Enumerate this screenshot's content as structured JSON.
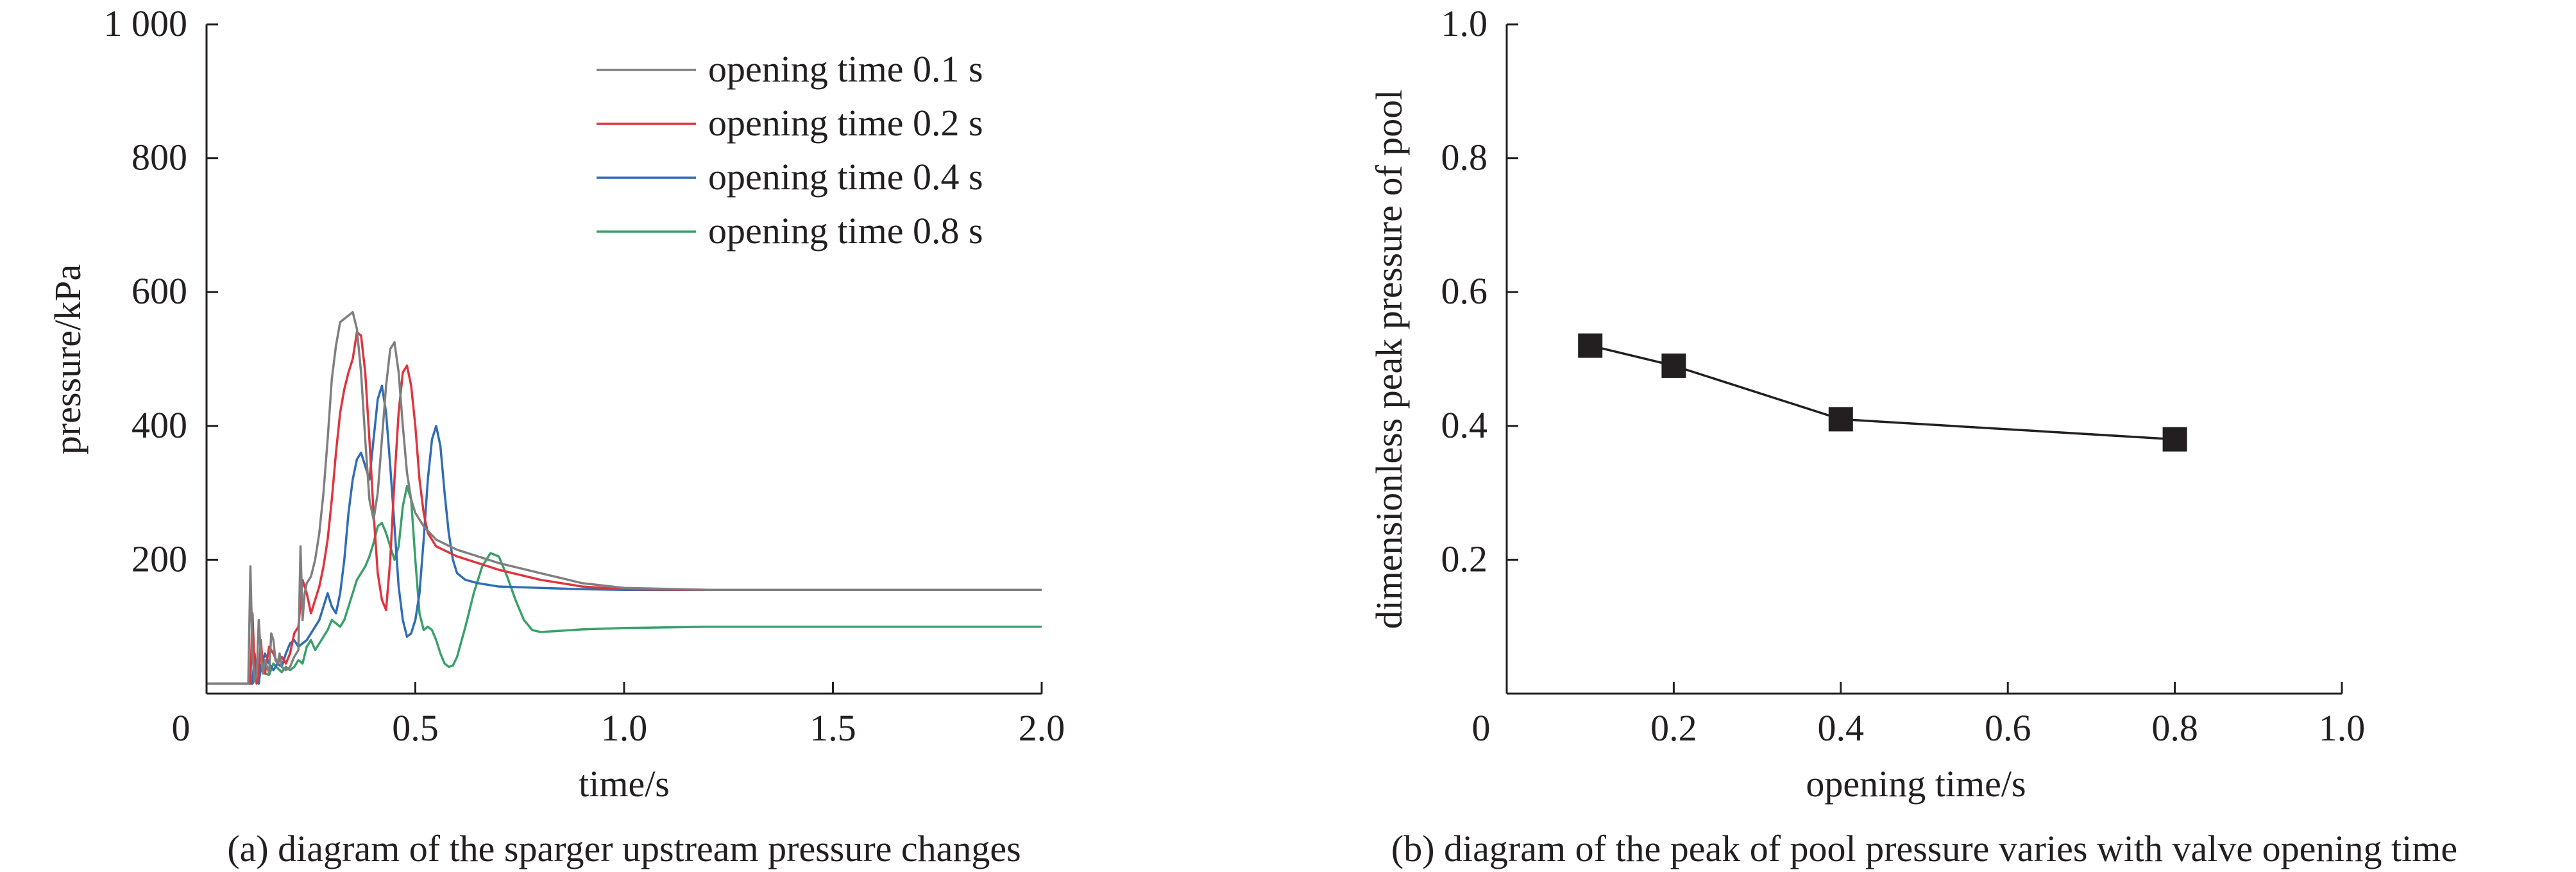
{
  "chart_data": [
    {
      "type": "line",
      "caption": "(a) diagram of the sparger upstream pressure changes",
      "xlabel": "time/s",
      "ylabel": "pressure/kPa",
      "xlim": [
        0,
        2.0
      ],
      "ylim": [
        0,
        1000
      ],
      "xticks": [
        0,
        0.5,
        1.0,
        1.5,
        2.0
      ],
      "xtick_labels": [
        "0",
        "0.5",
        "1.0",
        "1.5",
        "2.0"
      ],
      "yticks": [
        200,
        400,
        600,
        800,
        1000
      ],
      "ytick_labels": [
        "200",
        "400",
        "600",
        "800",
        "1 000"
      ],
      "grid": false,
      "legend_position": "top-right",
      "series": [
        {
          "name": "opening time 0.1 s",
          "color": "#7f7f7f",
          "x": [
            0,
            0.09,
            0.1,
            0.105,
            0.11,
            0.115,
            0.12,
            0.125,
            0.13,
            0.135,
            0.14,
            0.145,
            0.15,
            0.155,
            0.16,
            0.165,
            0.17,
            0.175,
            0.18,
            0.19,
            0.2,
            0.21,
            0.22,
            0.225,
            0.23,
            0.235,
            0.24,
            0.25,
            0.26,
            0.27,
            0.28,
            0.29,
            0.3,
            0.31,
            0.32,
            0.33,
            0.34,
            0.35,
            0.36,
            0.37,
            0.38,
            0.39,
            0.4,
            0.41,
            0.42,
            0.43,
            0.44,
            0.45,
            0.46,
            0.47,
            0.48,
            0.49,
            0.5,
            0.52,
            0.55,
            0.6,
            0.65,
            0.7,
            0.8,
            0.9,
            1.0,
            1.2,
            1.5,
            2.0
          ],
          "y": [
            15,
            15,
            15,
            190,
            60,
            20,
            25,
            110,
            60,
            30,
            50,
            40,
            30,
            90,
            80,
            50,
            45,
            60,
            40,
            35,
            40,
            55,
            65,
            220,
            110,
            150,
            165,
            175,
            200,
            240,
            300,
            380,
            470,
            520,
            555,
            560,
            565,
            570,
            545,
            480,
            380,
            290,
            260,
            300,
            380,
            460,
            515,
            525,
            480,
            400,
            330,
            290,
            270,
            250,
            230,
            215,
            205,
            195,
            180,
            165,
            158,
            155,
            155,
            155
          ]
        },
        {
          "name": "opening time 0.2 s",
          "color": "#e0343e",
          "x": [
            0,
            0.1,
            0.105,
            0.11,
            0.115,
            0.12,
            0.125,
            0.13,
            0.135,
            0.14,
            0.15,
            0.16,
            0.17,
            0.18,
            0.19,
            0.2,
            0.21,
            0.22,
            0.23,
            0.24,
            0.25,
            0.26,
            0.27,
            0.28,
            0.29,
            0.3,
            0.31,
            0.32,
            0.33,
            0.34,
            0.35,
            0.36,
            0.37,
            0.38,
            0.39,
            0.4,
            0.41,
            0.42,
            0.43,
            0.44,
            0.45,
            0.46,
            0.47,
            0.48,
            0.49,
            0.5,
            0.51,
            0.52,
            0.53,
            0.55,
            0.6,
            0.65,
            0.7,
            0.8,
            0.9,
            1.0,
            1.2,
            1.5,
            2.0
          ],
          "y": [
            15,
            15,
            15,
            120,
            40,
            15,
            30,
            80,
            40,
            30,
            70,
            60,
            45,
            55,
            45,
            60,
            90,
            100,
            170,
            150,
            120,
            140,
            160,
            190,
            230,
            290,
            360,
            420,
            455,
            480,
            500,
            540,
            535,
            480,
            380,
            270,
            180,
            140,
            125,
            200,
            320,
            420,
            480,
            490,
            460,
            400,
            320,
            270,
            240,
            220,
            205,
            195,
            185,
            170,
            160,
            156,
            155,
            155,
            155
          ]
        },
        {
          "name": "opening time 0.4 s",
          "color": "#2f6db5",
          "x": [
            0,
            0.1,
            0.11,
            0.115,
            0.12,
            0.125,
            0.13,
            0.14,
            0.15,
            0.16,
            0.17,
            0.18,
            0.19,
            0.2,
            0.21,
            0.22,
            0.23,
            0.24,
            0.25,
            0.26,
            0.27,
            0.28,
            0.29,
            0.3,
            0.31,
            0.32,
            0.33,
            0.34,
            0.35,
            0.36,
            0.37,
            0.38,
            0.39,
            0.4,
            0.41,
            0.42,
            0.43,
            0.44,
            0.45,
            0.46,
            0.47,
            0.48,
            0.49,
            0.5,
            0.51,
            0.52,
            0.53,
            0.54,
            0.55,
            0.56,
            0.57,
            0.58,
            0.59,
            0.6,
            0.62,
            0.65,
            0.7,
            0.8,
            0.9,
            1.0,
            1.2,
            1.5,
            2.0
          ],
          "y": [
            15,
            15,
            15,
            60,
            20,
            15,
            40,
            60,
            45,
            35,
            45,
            40,
            60,
            75,
            80,
            70,
            75,
            80,
            90,
            100,
            110,
            130,
            150,
            130,
            120,
            150,
            200,
            270,
            320,
            350,
            360,
            340,
            320,
            380,
            440,
            460,
            420,
            340,
            250,
            160,
            110,
            85,
            90,
            110,
            150,
            230,
            320,
            380,
            400,
            370,
            300,
            240,
            200,
            180,
            170,
            165,
            160,
            158,
            156,
            155,
            155,
            155,
            155
          ]
        },
        {
          "name": "opening time 0.8 s",
          "color": "#3aa06b",
          "x": [
            0,
            0.1,
            0.11,
            0.12,
            0.13,
            0.14,
            0.15,
            0.16,
            0.17,
            0.18,
            0.19,
            0.2,
            0.21,
            0.22,
            0.23,
            0.24,
            0.25,
            0.26,
            0.27,
            0.28,
            0.29,
            0.3,
            0.31,
            0.32,
            0.33,
            0.34,
            0.35,
            0.36,
            0.37,
            0.38,
            0.39,
            0.4,
            0.41,
            0.42,
            0.43,
            0.44,
            0.45,
            0.46,
            0.47,
            0.48,
            0.49,
            0.5,
            0.51,
            0.52,
            0.53,
            0.54,
            0.55,
            0.56,
            0.57,
            0.58,
            0.59,
            0.6,
            0.62,
            0.64,
            0.66,
            0.68,
            0.7,
            0.72,
            0.74,
            0.76,
            0.78,
            0.8,
            0.85,
            0.9,
            1.0,
            1.2,
            1.5,
            2.0
          ],
          "y": [
            15,
            15,
            15,
            25,
            35,
            30,
            28,
            45,
            38,
            32,
            40,
            35,
            40,
            50,
            45,
            70,
            80,
            65,
            75,
            85,
            95,
            110,
            105,
            100,
            110,
            130,
            150,
            170,
            180,
            190,
            205,
            225,
            250,
            255,
            240,
            220,
            200,
            220,
            280,
            310,
            290,
            200,
            120,
            95,
            100,
            95,
            80,
            60,
            45,
            40,
            42,
            55,
            100,
            150,
            190,
            210,
            205,
            175,
            140,
            110,
            95,
            92,
            94,
            96,
            98,
            100,
            100,
            100
          ]
        }
      ]
    },
    {
      "type": "line",
      "marker": "square",
      "caption": "(b) diagram of the peak of pool pressure varies with valve opening time",
      "xlabel": "opening time/s",
      "ylabel": "dimensionless peak pressure of  pool",
      "xlim": [
        0,
        1.0
      ],
      "ylim": [
        0,
        1.0
      ],
      "xticks": [
        0,
        0.2,
        0.4,
        0.6,
        0.8,
        1.0
      ],
      "xtick_labels": [
        "0",
        "0.2",
        "0.4",
        "0.6",
        "0.8",
        "1.0"
      ],
      "yticks": [
        0.2,
        0.4,
        0.6,
        0.8,
        1.0
      ],
      "ytick_labels": [
        "0.2",
        "0.4",
        "0.6",
        "0.8",
        "1.0"
      ],
      "grid": false,
      "series": [
        {
          "color": "#231f20",
          "x": [
            0.1,
            0.2,
            0.4,
            0.8
          ],
          "y": [
            0.52,
            0.49,
            0.41,
            0.38
          ]
        }
      ]
    }
  ]
}
